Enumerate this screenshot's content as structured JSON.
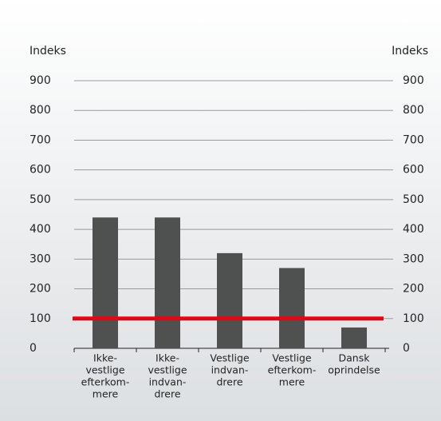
{
  "chart_data": {
    "type": "bar",
    "y_label": "Indeks",
    "y2_label": "Indeks",
    "categories": [
      [
        "Ikke-",
        "vestlige",
        "efterkom-",
        "mere"
      ],
      [
        "Ikke-",
        "vestlige",
        "indvan-",
        "drere"
      ],
      [
        "Vestlige",
        "indvan-",
        "drere"
      ],
      [
        "Vestlige",
        "efterkom-",
        "mere"
      ],
      [
        "Dansk",
        "oprindelse"
      ]
    ],
    "values": [
      440,
      440,
      320,
      270,
      70
    ],
    "color": "#4f5050",
    "reference_line": {
      "value": 100,
      "color": "#e30613"
    },
    "ylim": [
      0,
      900
    ],
    "yticks": [
      0,
      100,
      200,
      300,
      400,
      500,
      600,
      700,
      800,
      900
    ],
    "y2lim": [
      0,
      900
    ],
    "y2ticks": [
      0,
      100,
      200,
      300,
      400,
      500,
      600,
      700,
      800,
      900
    ],
    "grid": true
  }
}
